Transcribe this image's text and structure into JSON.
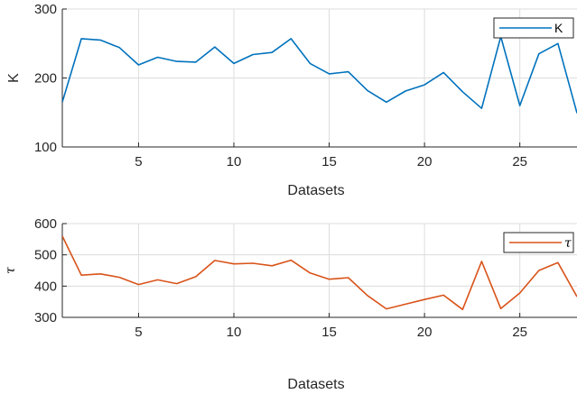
{
  "chart_data": [
    {
      "type": "line",
      "xlabel": "Datasets",
      "ylabel": "K",
      "xlim": [
        1,
        28
      ],
      "ylim": [
        100,
        300
      ],
      "xticks": [
        5,
        10,
        15,
        20,
        25
      ],
      "yticks": [
        100,
        200,
        300
      ],
      "grid": true,
      "legend_position": "top-right",
      "series": [
        {
          "name": "K",
          "color": "#0072BD",
          "x": [
            1,
            2,
            3,
            4,
            5,
            6,
            7,
            8,
            9,
            10,
            11,
            12,
            13,
            14,
            15,
            16,
            17,
            18,
            19,
            20,
            21,
            22,
            23,
            24,
            25,
            26,
            27,
            28
          ],
          "values": [
            165,
            257,
            255,
            244,
            219,
            230,
            224,
            223,
            245,
            221,
            234,
            237,
            257,
            221,
            206,
            209,
            182,
            165,
            181,
            190,
            208,
            180,
            156,
            260,
            160,
            235,
            250,
            149
          ]
        }
      ]
    },
    {
      "type": "line",
      "xlabel": "Datasets",
      "ylabel": "τ",
      "xlim": [
        1,
        28
      ],
      "ylim": [
        300,
        600
      ],
      "xticks": [
        5,
        10,
        15,
        20,
        25
      ],
      "yticks": [
        300,
        400,
        500,
        600
      ],
      "grid": true,
      "legend_position": "top-right",
      "series": [
        {
          "name": "τ",
          "color": "#D95319",
          "x": [
            1,
            2,
            3,
            4,
            5,
            6,
            7,
            8,
            9,
            10,
            11,
            12,
            13,
            14,
            15,
            16,
            17,
            18,
            19,
            20,
            21,
            22,
            23,
            24,
            25,
            26,
            27,
            28
          ],
          "values": [
            560,
            435,
            439,
            428,
            405,
            420,
            408,
            430,
            482,
            471,
            473,
            465,
            483,
            442,
            422,
            427,
            370,
            327,
            342,
            357,
            371,
            325,
            479,
            328,
            378,
            450,
            475,
            366
          ]
        }
      ]
    }
  ]
}
